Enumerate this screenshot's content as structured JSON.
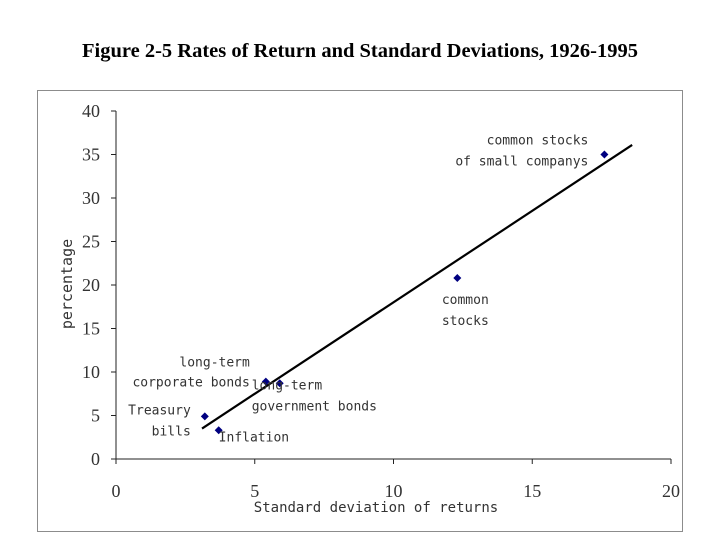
{
  "figure": {
    "title": "Figure 2-5 Rates of Return and Standard Deviations, 1926-1995"
  },
  "chart_data": {
    "type": "scatter",
    "xlabel": "Standard deviation of returns",
    "ylabel": "percentage",
    "xlim": [
      0,
      20
    ],
    "ylim": [
      0,
      40
    ],
    "x_ticks": [
      0,
      5,
      10,
      15,
      20
    ],
    "y_ticks": [
      0,
      5,
      10,
      15,
      20,
      25,
      30,
      35,
      40
    ],
    "grid": false,
    "marker_color": "#000080",
    "line_color": "#000000",
    "points": [
      {
        "name": "Treasury bills",
        "label_lines": [
          "Treasury",
          "bills"
        ],
        "x": 3.2,
        "y": 4.9
      },
      {
        "name": "Inflation",
        "label_lines": [
          "Inflation"
        ],
        "x": 3.7,
        "y": 3.3
      },
      {
        "name": "long-term corporate bonds",
        "label_lines": [
          "long-term",
          "corporate bonds"
        ],
        "x": 5.4,
        "y": 8.9
      },
      {
        "name": "long-term government bonds",
        "label_lines": [
          "long-term",
          "government bonds"
        ],
        "x": 5.9,
        "y": 8.7
      },
      {
        "name": "common stocks",
        "label_lines": [
          "common",
          "stocks"
        ],
        "x": 12.3,
        "y": 20.8
      },
      {
        "name": "common stocks of small companys",
        "label_lines": [
          "common stocks",
          "of small companys"
        ],
        "x": 17.6,
        "y": 35.0
      }
    ],
    "trend_line": {
      "x": [
        3.1,
        18.6
      ],
      "y": [
        3.5,
        36.1
      ]
    }
  }
}
